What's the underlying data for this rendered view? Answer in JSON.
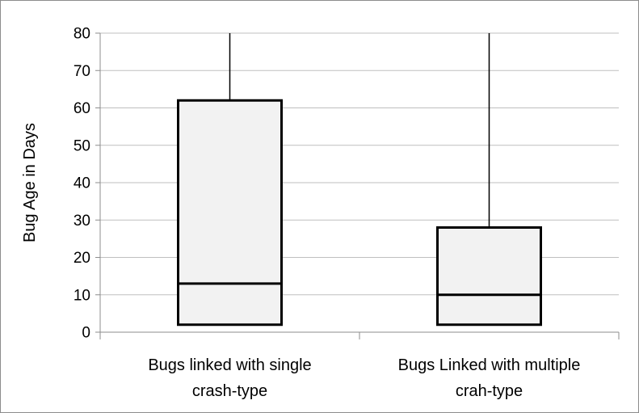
{
  "chart_data": {
    "type": "box",
    "ylabel": "Bug Age in Days",
    "xlabel": "",
    "ylim": [
      0,
      80
    ],
    "yticks": [
      0,
      10,
      20,
      30,
      40,
      50,
      60,
      70,
      80
    ],
    "grid": true,
    "categories": [
      {
        "lines": [
          "Bugs linked with single",
          "crash-type"
        ]
      },
      {
        "lines": [
          "Bugs Linked with multiple",
          "crah-type"
        ]
      }
    ],
    "boxes": [
      {
        "whisker_low": 2,
        "q1": 2,
        "median": 13,
        "q3": 62,
        "whisker_high": 80
      },
      {
        "whisker_low": 2,
        "q1": 2,
        "median": 10,
        "q3": 28,
        "whisker_high": 80
      }
    ],
    "colors": {
      "box_fill": "#f2f2f2",
      "box_stroke": "#000000",
      "grid": "#bfbfbf",
      "axis": "#8c8c8c"
    }
  }
}
